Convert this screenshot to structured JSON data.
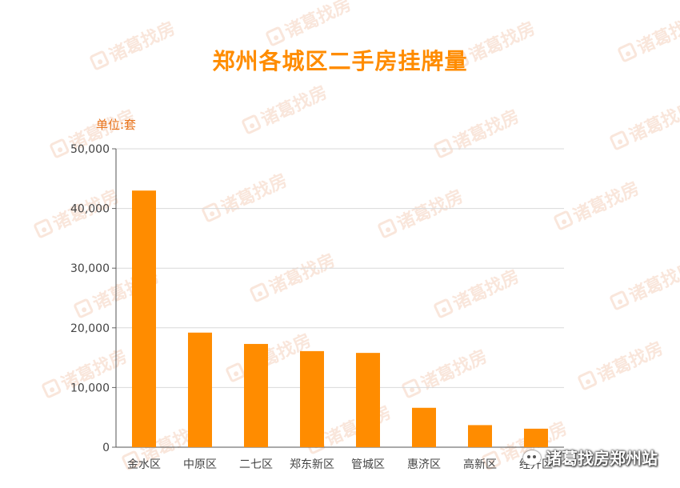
{
  "chart_data": {
    "type": "bar",
    "title": "郑州各城区二手房挂牌量",
    "unit_label": "单位:套",
    "categories": [
      "金水区",
      "中原区",
      "二七区",
      "郑东新区",
      "管城区",
      "惠济区",
      "高新区",
      "经开区"
    ],
    "values": [
      43000,
      19200,
      17300,
      16100,
      15800,
      6600,
      3700,
      3100
    ],
    "ylim": [
      0,
      50000
    ],
    "yticks": [
      0,
      10000,
      20000,
      30000,
      40000,
      50000
    ],
    "ytick_labels": [
      "0",
      "10,000",
      "20,000",
      "30,000",
      "40,000",
      "50,000"
    ],
    "grid": true,
    "bar_color": "#ff8c00"
  },
  "watermark_text": "诸葛找房",
  "brand": {
    "label": "诸葛找房郑州站"
  }
}
